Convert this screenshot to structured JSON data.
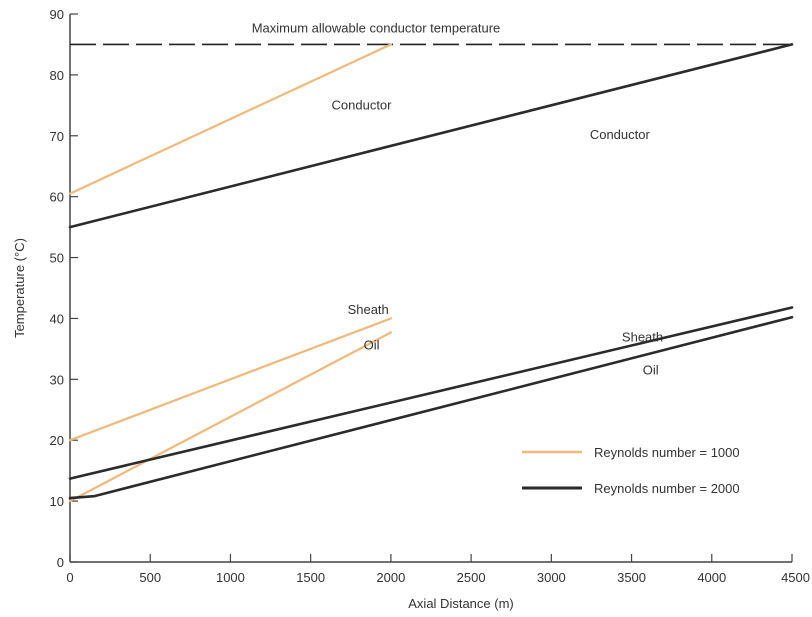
{
  "chart_data": {
    "type": "line",
    "xlabel": "Axial Distance (m)",
    "ylabel": "Temperature (°C)",
    "xlim": [
      0,
      4500
    ],
    "ylim": [
      0,
      90
    ],
    "xticks": [
      0,
      500,
      1000,
      1500,
      2000,
      2500,
      3000,
      3500,
      4000,
      4500
    ],
    "yticks": [
      0,
      10,
      20,
      30,
      40,
      50,
      60,
      70,
      80,
      90
    ],
    "grid": false,
    "legend_position": "bottom-right",
    "colors": {
      "re1000": "#f0b87a",
      "re2000": "#2b2b2b",
      "limit": "#222222",
      "axis": "#444444"
    },
    "legend": [
      {
        "label": "Reynolds number = 1000",
        "color": "#f0b87a"
      },
      {
        "label": "Reynolds number = 2000",
        "color": "#2b2b2b"
      }
    ],
    "reference_line": {
      "label": "Maximum allowable conductor temperature",
      "y": 85,
      "style": "dashed"
    },
    "series": [
      {
        "group": "re1000",
        "color": "#f0b87a",
        "x": [
          0,
          2000
        ],
        "y": [
          60.5,
          85
        ]
      },
      {
        "group": "re1000",
        "color": "#f0b87a",
        "x": [
          0,
          2000
        ],
        "y": [
          20,
          40
        ]
      },
      {
        "group": "re1000",
        "color": "#f0b87a",
        "x": [
          0,
          2000
        ],
        "y": [
          10,
          37.7
        ]
      },
      {
        "group": "re2000",
        "color": "#2b2b2b",
        "x": [
          0,
          4500
        ],
        "y": [
          55,
          85
        ]
      },
      {
        "group": "re2000",
        "color": "#2b2b2b",
        "x": [
          0,
          4500
        ],
        "y": [
          13.7,
          41.8
        ]
      },
      {
        "group": "re2000",
        "color": "#2b2b2b",
        "x": [
          0,
          150,
          4500
        ],
        "y": [
          10.5,
          10.8,
          40.2
        ]
      }
    ],
    "annotations": [
      {
        "text": "Conductor",
        "x": 1630,
        "y": 74.3
      },
      {
        "text": "Conductor",
        "x": 3240,
        "y": 69.5
      },
      {
        "text": "Sheath",
        "x": 1730,
        "y": 40.7
      },
      {
        "text": "Oil",
        "x": 1830,
        "y": 34.9
      },
      {
        "text": "Sheath",
        "x": 3440,
        "y": 36.2
      },
      {
        "text": "Oil",
        "x": 3570,
        "y": 30.8
      }
    ]
  }
}
